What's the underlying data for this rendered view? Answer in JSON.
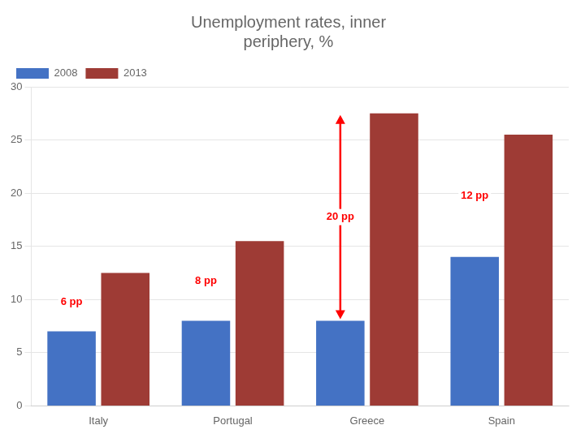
{
  "chart_data": {
    "type": "bar",
    "title": "Unemployment rates, inner\nperiphery, %",
    "categories": [
      "Italy",
      "Portugal",
      "Greece",
      "Spain"
    ],
    "series": [
      {
        "name": "2008",
        "color": "#4472C4",
        "values": [
          7,
          8,
          8,
          14
        ]
      },
      {
        "name": "2013",
        "color": "#9E3B35",
        "values": [
          12.5,
          15.5,
          27.5,
          25.5
        ]
      }
    ],
    "ylim": [
      0,
      30
    ],
    "yticks": [
      0,
      5,
      10,
      15,
      20,
      25,
      30
    ],
    "grid": true,
    "legend": "upper left",
    "annotations": [
      {
        "text": "6 pp",
        "category": "Italy"
      },
      {
        "text": "8 pp",
        "category": "Portugal"
      },
      {
        "text": "20 pp",
        "category": "Greece",
        "arrow": true
      },
      {
        "text": "12 pp",
        "category": "Spain"
      }
    ]
  }
}
